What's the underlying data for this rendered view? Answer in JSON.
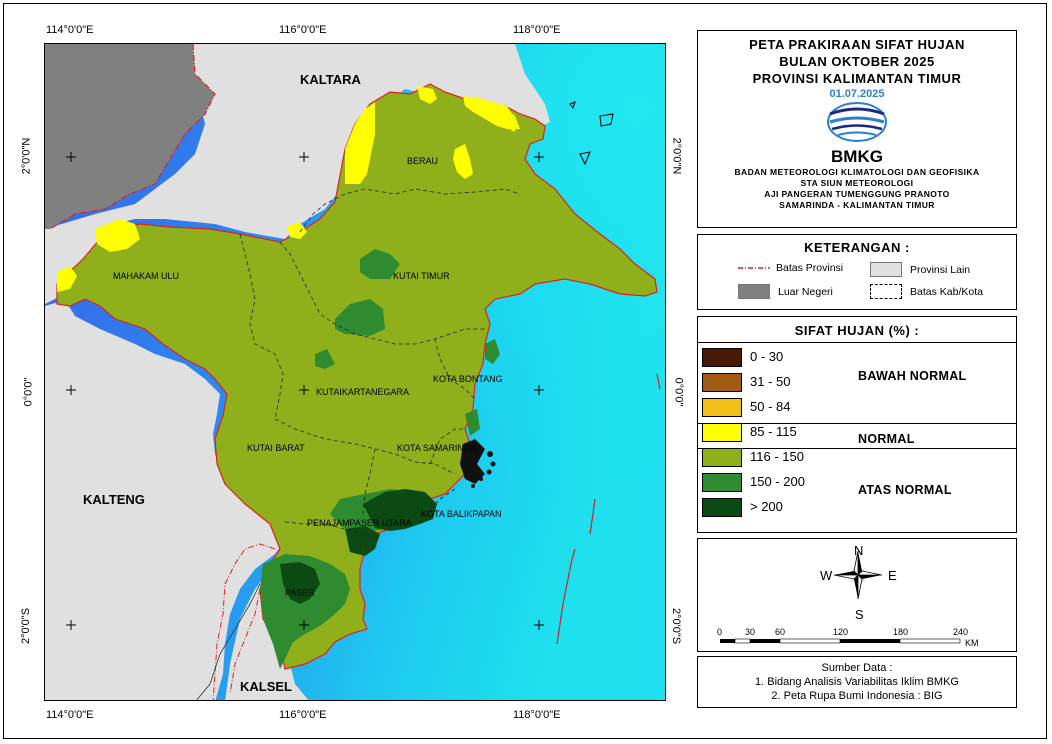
{
  "coords": {
    "lon_labels": [
      "114°0'0\"E",
      "116°0'0\"E",
      "118°0'0\"E"
    ],
    "lat_labels": [
      "2°0'0\"N",
      "0°0'0\"",
      "2°0'0\"S"
    ]
  },
  "map_labels": {
    "kaltara": "KALTARA",
    "kalteng": "KALTENG",
    "kalsel": "KALSEL",
    "berau": "BERAU",
    "mahakam_ulu": "MAHAKAM ULU",
    "kutai_timur": "KUTAI TIMUR",
    "kota_bontang": "KOTA BONTANG",
    "kutai_kartanegara": "KUTAIKARTANEGARA",
    "kutai_barat": "KUTAI BARAT",
    "kota_samarinda": "KOTA SAMARINDA",
    "kota_balikpapan": "KOTA BALIKPAPAN",
    "penajam": "PENAJAMPASER UTARA",
    "paser": "PASER"
  },
  "title": {
    "line1": "PETA PRAKIRAAN SIFAT HUJAN",
    "line2": "BULAN OKTOBER 2025",
    "line3": "PROVINSI KALIMANTAN TIMUR",
    "date": "01.07.2025",
    "logo_text": "BMKG",
    "org1": "BADAN METEOROLOGI KLIMATOLOGI DAN GEOFISIKA",
    "org2": "STA SIUN METEOROLOGI",
    "org3": "AJI PANGERAN TUMENGGUNG PRANOTO",
    "org4": "SAMARINDA - KALIMANTAN TIMUR"
  },
  "keterangan": {
    "title": "KETERANGAN :",
    "batas_provinsi": "Batas Provinsi",
    "provinsi_lain": "Provinsi Lain",
    "luar_negeri": "Luar Negeri",
    "batas_kab": "Batas Kab/Kota"
  },
  "sifat_hujan": {
    "title": "SIFAT HUJAN (%) :",
    "classes": [
      {
        "label": "0 - 30",
        "color": "#4a1a08"
      },
      {
        "label": "31 - 50",
        "color": "#a05a12"
      },
      {
        "label": "50 - 84",
        "color": "#f0c018"
      },
      {
        "label": "85 - 115",
        "color": "#ffff00"
      },
      {
        "label": "116 - 150",
        "color": "#8fb01a"
      },
      {
        "label": "150 - 200",
        "color": "#2e8b30"
      },
      {
        "label": "> 200",
        "color": "#0c4a14"
      }
    ],
    "group_bawah": "BAWAH NORMAL",
    "group_normal": "NORMAL",
    "group_atas": "ATAS NORMAL"
  },
  "compass": {
    "n": "N",
    "s": "S",
    "e": "E",
    "w": "W"
  },
  "scale": {
    "ticks": [
      "0",
      "30",
      "60",
      "120",
      "180",
      "240"
    ],
    "unit": "KM"
  },
  "source": {
    "title": "Sumber Data :",
    "line1": "1. Bidang Analisis Variabilitas Iklim BMKG",
    "line2": "2. Peta Rupa Bumi Indonesia : BIG"
  },
  "colors": {
    "other_province": "#e0e0e0",
    "foreign": "#808080",
    "province_border": "#e02020",
    "sea_deep": "#2e6ff0",
    "sea_shallow": "#20d8f0"
  }
}
